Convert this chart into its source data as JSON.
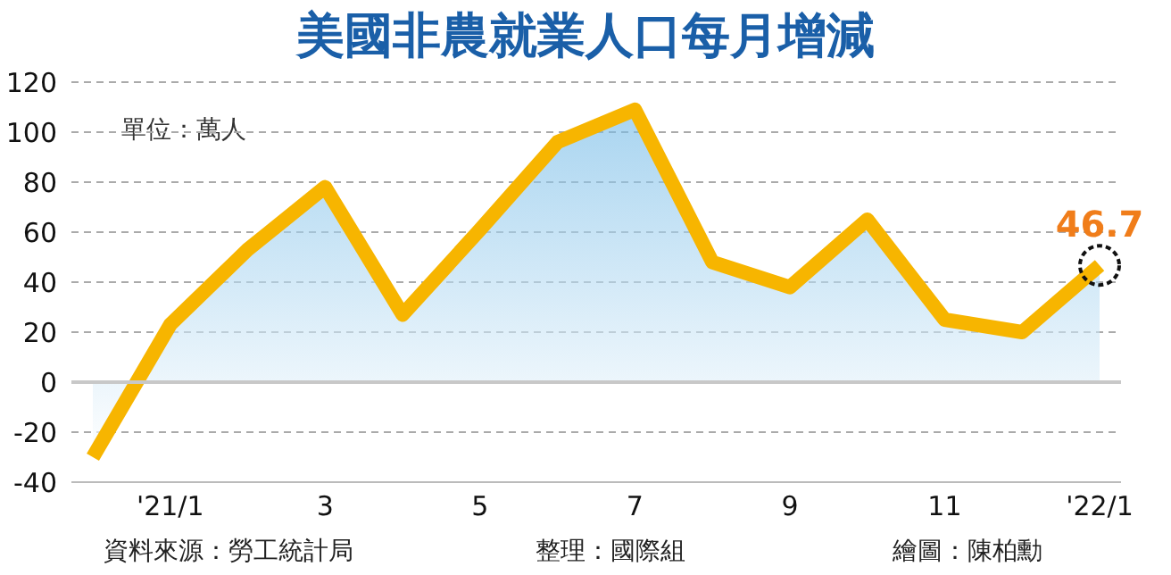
{
  "chart_data": {
    "type": "area",
    "title": "美國非農就業人口每月增減",
    "categories": [
      null,
      "'21/1",
      null,
      "3",
      null,
      "5",
      null,
      "7",
      null,
      "9",
      null,
      "11",
      null,
      "'22/1"
    ],
    "series": [
      {
        "color": "#f7b500",
        "values": [
          -30,
          23,
          53,
          78,
          27,
          61,
          96,
          109,
          48,
          38,
          65,
          25,
          20,
          46.7
        ],
        "value_labels": [
          null,
          null,
          null,
          null,
          null,
          null,
          null,
          null,
          null,
          null,
          null,
          null,
          null,
          "46.7"
        ]
      }
    ],
    "ylim": [
      -40,
      120
    ],
    "yticks": [
      -40,
      -20,
      0,
      20,
      40,
      60,
      80,
      100,
      120
    ],
    "grid": "y",
    "marker": "none",
    "ref_lines": [
      {
        "axis": "y",
        "value": 0,
        "color": "#c8c8c8"
      }
    ],
    "annotations": [
      "單位：萬人",
      "資料來源：勞工統計局",
      "整理：國際組",
      "繪圖：陳柏勳"
    ]
  }
}
